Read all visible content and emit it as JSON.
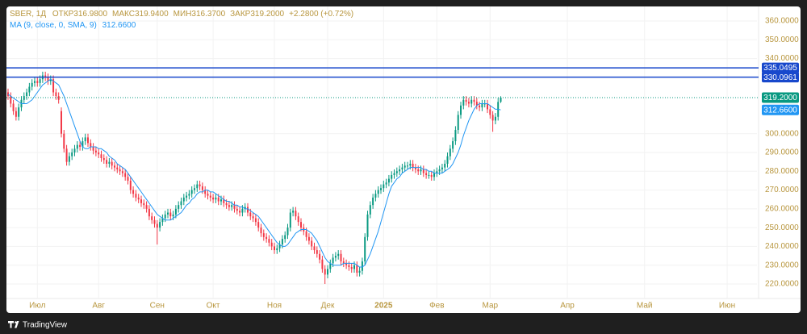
{
  "chart_data": {
    "type": "candlestick",
    "symbol": "SBER, 1Д",
    "legend_items": [
      {
        "label": "ОТКР",
        "value": "316.9800"
      },
      {
        "label": "МАКС",
        "value": "319.9400"
      },
      {
        "label": "МИН",
        "value": "316.3700"
      },
      {
        "label": "ЗАКР",
        "value": "319.2000"
      }
    ],
    "change": "+2.2800 (+0.72%)",
    "up_color": "#089981",
    "down_color": "#f23645",
    "open": [
      322,
      320,
      316,
      312,
      309,
      314,
      318,
      320,
      322,
      325,
      327,
      328,
      327,
      329,
      331,
      330,
      328,
      329,
      322,
      320,
      312,
      300,
      292,
      285,
      288,
      290,
      292,
      294,
      293,
      296,
      298,
      295,
      293,
      291,
      290,
      289,
      287,
      286,
      284,
      285,
      283,
      282,
      281,
      280,
      279,
      277,
      275,
      270,
      268,
      266,
      265,
      263,
      262,
      260,
      256,
      254,
      252,
      250,
      253,
      255,
      257,
      258,
      256,
      257,
      260,
      262,
      264,
      266,
      267,
      268,
      270,
      271,
      273,
      272,
      270,
      268,
      267,
      266,
      265,
      266,
      264,
      265,
      263,
      262,
      261,
      262,
      260,
      259,
      258,
      260,
      261,
      258,
      256,
      255,
      253,
      250,
      247,
      245,
      244,
      242,
      240,
      238,
      239,
      241,
      244,
      246,
      250,
      258,
      259,
      256,
      253,
      250,
      248,
      245,
      243,
      240,
      238,
      236,
      233,
      228,
      225,
      228,
      231,
      234,
      235,
      236,
      232,
      231,
      230,
      229,
      228,
      230,
      226,
      227,
      232,
      245,
      257,
      262,
      266,
      268,
      270,
      271,
      273,
      274,
      276,
      278,
      279,
      280,
      281,
      282,
      283,
      283,
      284,
      282,
      281,
      280,
      281,
      279,
      278,
      278,
      277,
      279,
      280,
      281,
      282,
      284,
      288,
      292,
      296,
      302,
      310,
      315,
      318,
      317,
      316,
      318,
      317,
      315,
      314,
      316,
      316,
      313,
      310,
      307,
      309,
      316.98
    ],
    "high": [
      324,
      322,
      318,
      314,
      316,
      320,
      322,
      324,
      327,
      329,
      330,
      330,
      331,
      333,
      333,
      332,
      331,
      331,
      324,
      322,
      314,
      302,
      294,
      290,
      292,
      294,
      296,
      296,
      298,
      300,
      300,
      297,
      295,
      293,
      292,
      291,
      289,
      288,
      287,
      287,
      285,
      284,
      283,
      282,
      281,
      279,
      277,
      272,
      270,
      268,
      267,
      265,
      264,
      262,
      258,
      256,
      254,
      255,
      257,
      259,
      260,
      260,
      259,
      262,
      264,
      266,
      268,
      269,
      270,
      272,
      273,
      275,
      275,
      274,
      272,
      270,
      269,
      268,
      268,
      268,
      267,
      267,
      265,
      264,
      264,
      264,
      262,
      261,
      262,
      263,
      263,
      260,
      258,
      257,
      255,
      252,
      249,
      247,
      246,
      244,
      242,
      241,
      243,
      246,
      248,
      252,
      260,
      261,
      261,
      258,
      255,
      252,
      250,
      247,
      245,
      242,
      240,
      238,
      235,
      230,
      230,
      233,
      236,
      237,
      238,
      238,
      234,
      233,
      232,
      231,
      232,
      232,
      229,
      234,
      247,
      259,
      264,
      268,
      270,
      272,
      273,
      275,
      276,
      278,
      280,
      281,
      282,
      283,
      284,
      285,
      285,
      286,
      286,
      284,
      283,
      283,
      283,
      281,
      280,
      280,
      281,
      282,
      283,
      284,
      286,
      290,
      294,
      298,
      304,
      312,
      317,
      320,
      320,
      319,
      320,
      320,
      319,
      317,
      318,
      318,
      318,
      315,
      312,
      311,
      319,
      319.94
    ],
    "low": [
      318,
      314,
      310,
      307,
      307,
      312,
      316,
      318,
      320,
      323,
      325,
      325,
      325,
      327,
      328,
      326,
      326,
      320,
      318,
      316,
      298,
      290,
      283,
      283,
      286,
      288,
      290,
      291,
      291,
      294,
      293,
      291,
      289,
      288,
      287,
      285,
      284,
      282,
      282,
      281,
      280,
      279,
      278,
      277,
      275,
      273,
      268,
      266,
      264,
      263,
      261,
      260,
      258,
      254,
      252,
      250,
      241,
      248,
      251,
      253,
      255,
      254,
      254,
      255,
      258,
      260,
      262,
      264,
      265,
      266,
      268,
      269,
      270,
      268,
      266,
      265,
      264,
      263,
      263,
      262,
      262,
      261,
      260,
      259,
      259,
      258,
      257,
      256,
      256,
      258,
      256,
      254,
      253,
      251,
      248,
      245,
      243,
      242,
      240,
      238,
      236,
      236,
      237,
      239,
      242,
      244,
      248,
      256,
      254,
      251,
      248,
      246,
      243,
      241,
      238,
      236,
      234,
      231,
      226,
      220,
      223,
      226,
      229,
      232,
      233,
      230,
      229,
      228,
      227,
      226,
      226,
      224,
      224,
      225,
      230,
      243,
      255,
      260,
      264,
      266,
      268,
      269,
      271,
      272,
      274,
      276,
      277,
      278,
      279,
      280,
      281,
      281,
      280,
      279,
      278,
      278,
      277,
      276,
      276,
      275,
      275,
      277,
      278,
      279,
      280,
      282,
      286,
      290,
      294,
      300,
      308,
      313,
      315,
      314,
      314,
      315,
      313,
      312,
      312,
      314,
      311,
      308,
      301,
      305,
      307,
      316.37
    ],
    "close": [
      320,
      316,
      312,
      309,
      314,
      318,
      320,
      322,
      325,
      327,
      328,
      327,
      329,
      331,
      330,
      328,
      329,
      322,
      320,
      318,
      300,
      292,
      285,
      288,
      290,
      292,
      294,
      293,
      296,
      298,
      295,
      293,
      291,
      290,
      289,
      287,
      286,
      284,
      285,
      283,
      282,
      281,
      280,
      279,
      277,
      275,
      270,
      268,
      266,
      265,
      263,
      262,
      260,
      256,
      254,
      252,
      250,
      253,
      255,
      257,
      258,
      256,
      257,
      260,
      262,
      264,
      266,
      267,
      268,
      270,
      271,
      273,
      272,
      270,
      268,
      267,
      266,
      265,
      266,
      264,
      265,
      263,
      262,
      261,
      262,
      260,
      259,
      258,
      260,
      261,
      258,
      256,
      255,
      253,
      250,
      247,
      245,
      244,
      242,
      240,
      238,
      239,
      241,
      244,
      246,
      250,
      258,
      259,
      256,
      253,
      250,
      248,
      245,
      243,
      240,
      238,
      236,
      233,
      228,
      225,
      228,
      231,
      234,
      235,
      236,
      232,
      231,
      230,
      229,
      228,
      230,
      226,
      227,
      232,
      245,
      257,
      262,
      266,
      268,
      270,
      271,
      273,
      274,
      276,
      278,
      279,
      280,
      281,
      282,
      283,
      283,
      284,
      282,
      281,
      280,
      281,
      279,
      278,
      278,
      277,
      279,
      280,
      281,
      282,
      284,
      288,
      292,
      296,
      302,
      310,
      315,
      318,
      317,
      316,
      318,
      317,
      315,
      314,
      316,
      316,
      313,
      310,
      307,
      309,
      316.92,
      319.2
    ],
    "ma": {
      "name": "MA (9, close, 0, SMA, 9)",
      "color": "#2196f3",
      "last_label": "312.6600",
      "values": [
        321,
        320,
        319,
        318,
        317,
        316,
        316,
        316,
        317,
        318,
        320,
        322,
        324,
        326,
        327,
        328,
        329,
        328,
        327,
        326,
        323,
        320,
        316,
        312,
        308,
        304,
        300,
        296,
        293,
        292,
        292,
        293,
        293,
        293,
        292,
        292,
        291,
        290,
        288,
        287,
        286,
        284,
        283,
        282,
        281,
        279,
        277,
        275,
        273,
        271,
        269,
        267,
        265,
        263,
        261,
        259,
        257,
        256,
        255,
        254,
        254,
        254,
        255,
        256,
        257,
        258,
        260,
        262,
        263,
        265,
        266,
        268,
        269,
        269,
        270,
        270,
        269,
        269,
        268,
        267,
        266,
        265,
        264,
        264,
        263,
        262,
        262,
        261,
        261,
        260,
        260,
        259,
        258,
        257,
        256,
        254,
        252,
        250,
        248,
        246,
        244,
        242,
        241,
        240,
        240,
        241,
        243,
        245,
        247,
        248,
        249,
        249,
        249,
        248,
        247,
        245,
        243,
        240,
        237,
        234,
        232,
        231,
        230,
        230,
        230,
        230,
        231,
        231,
        231,
        231,
        231,
        230,
        229,
        229,
        230,
        233,
        236,
        240,
        244,
        248,
        253,
        258,
        263,
        268,
        272,
        274,
        276,
        277,
        279,
        280,
        281,
        282,
        282,
        282,
        282,
        282,
        281,
        281,
        280,
        280,
        279,
        279,
        279,
        279,
        280,
        281,
        282,
        284,
        287,
        290,
        294,
        299,
        303,
        307,
        310,
        313,
        315,
        316,
        316,
        316,
        316,
        315,
        314,
        313,
        313,
        312.66
      ]
    },
    "last_price": {
      "value": 319.2,
      "label": "319.2000"
    },
    "hlines": [
      335.0495,
      330.0961
    ],
    "hline_color": "#1848cc",
    "xlim": [
      -0.6,
      281.2
    ],
    "xticks": [
      {
        "value": 11,
        "label": "Июл"
      },
      {
        "value": 34,
        "label": "Авг"
      },
      {
        "value": 56,
        "label": "Сен"
      },
      {
        "value": 77,
        "label": "Окт"
      },
      {
        "value": 100,
        "label": "Ноя"
      },
      {
        "value": 120,
        "label": "Дек"
      },
      {
        "value": 141,
        "label": "2025"
      },
      {
        "value": 161,
        "label": "Фев"
      },
      {
        "value": 181,
        "label": "Мар"
      },
      {
        "value": 210,
        "label": "Апр"
      },
      {
        "value": 239,
        "label": "Май"
      },
      {
        "value": 270,
        "label": "Июн"
      }
    ],
    "ylim": [
      212.27,
      367.73
    ],
    "yticks": [
      {
        "value": 220,
        "label": "220.0000"
      },
      {
        "value": 230,
        "label": "230.0000"
      },
      {
        "value": 240,
        "label": "240.0000"
      },
      {
        "value": 250,
        "label": "250.0000"
      },
      {
        "value": 260,
        "label": "260.0000"
      },
      {
        "value": 270,
        "label": "270.0000"
      },
      {
        "value": 280,
        "label": "280.0000"
      },
      {
        "value": 290,
        "label": "290.0000"
      },
      {
        "value": 300,
        "label": "300.0000"
      },
      {
        "value": 340,
        "label": "340.0000"
      },
      {
        "value": 350,
        "label": "350.0000"
      },
      {
        "value": 360,
        "label": "360.0000"
      }
    ],
    "grid": true,
    "brand": "TradingView"
  }
}
